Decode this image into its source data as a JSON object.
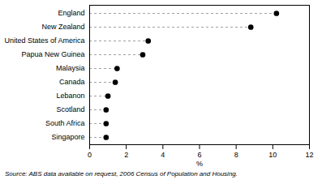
{
  "chart_data": {
    "type": "dot",
    "orientation": "horizontal",
    "categories": [
      "England",
      "New Zealand",
      "United States of America",
      "Papua New Guinea",
      "Malaysia",
      "Canada",
      "Lebanon",
      "Scotland",
      "South Africa",
      "Singapore"
    ],
    "values": [
      10.2,
      8.8,
      3.2,
      2.9,
      1.5,
      1.4,
      1.0,
      0.9,
      0.9,
      0.9
    ],
    "color": "#000000",
    "marker": "circle",
    "line_style": "dashed",
    "xlim": [
      0,
      12
    ],
    "xticks": [
      0,
      2,
      4,
      6,
      8,
      10,
      12
    ],
    "x_label": "%",
    "caption": "Source: ABS data available on request, 2006 Census of Population and Housing."
  }
}
